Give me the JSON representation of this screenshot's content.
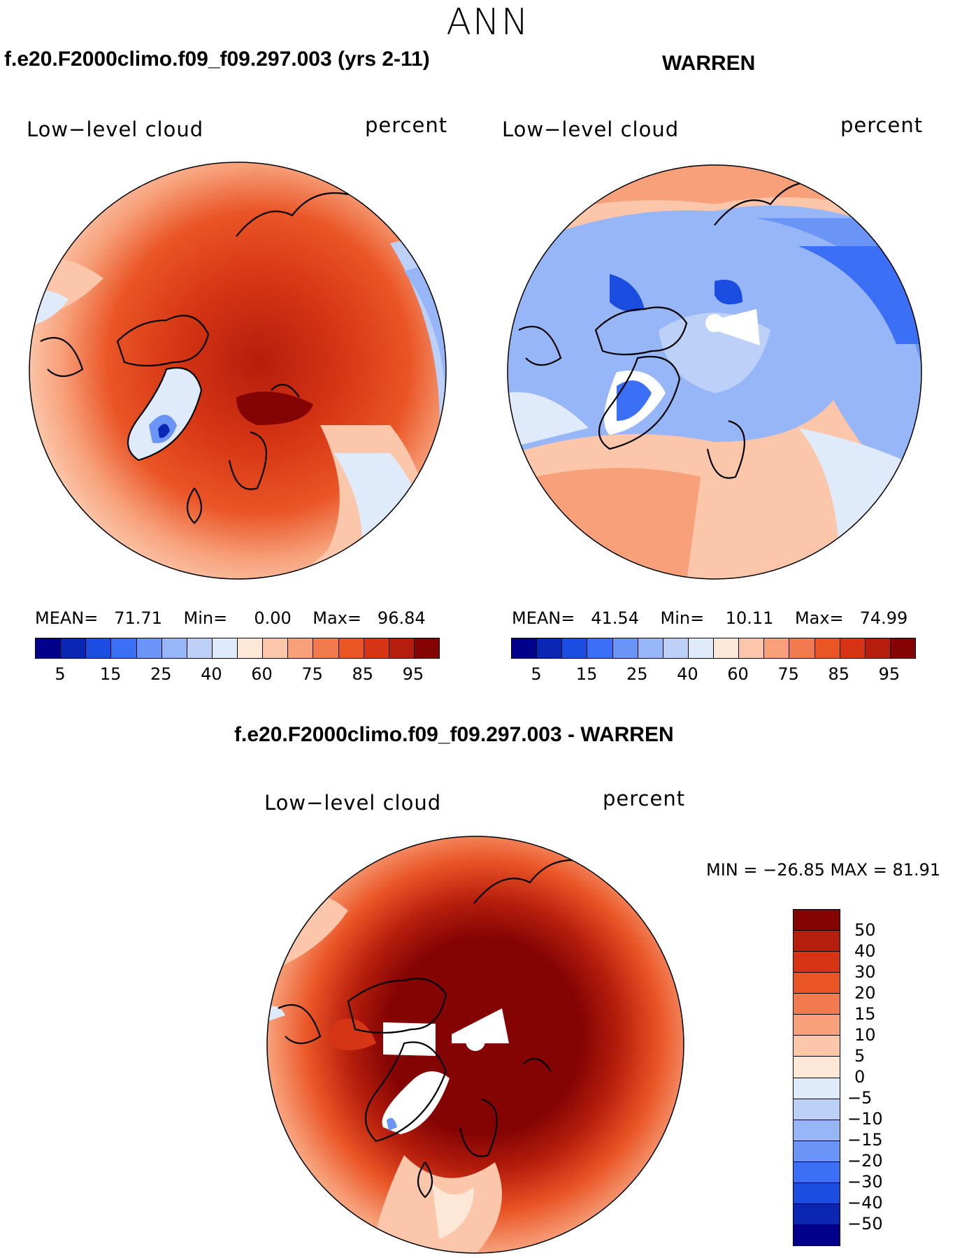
{
  "title": "ANN",
  "panels": {
    "model": {
      "title": "f.e20.F2000climo.f09_f09.297.003 (yrs 2-11)",
      "variable": "Low−level cloud",
      "units": "percent",
      "stats": {
        "mean_label": "MEAN=",
        "mean": "71.71",
        "min_label": "Min=",
        "min": "0.00",
        "max_label": "Max=",
        "max": "96.84"
      }
    },
    "obs": {
      "title": "WARREN",
      "variable": "Low−level cloud",
      "units": "percent",
      "stats": {
        "mean_label": "MEAN=",
        "mean": "41.54",
        "min_label": "Min=",
        "min": "10.11",
        "max_label": "Max=",
        "max": "74.99"
      }
    },
    "diff": {
      "title": "f.e20.F2000climo.f09_f09.297.003 - WARREN",
      "variable": "Low−level cloud",
      "units": "percent",
      "stats_text": "MIN = −26.85 MAX =   81.91"
    }
  },
  "colorbar_abs": {
    "colors": [
      "#00008a",
      "#0a27b4",
      "#1b4de0",
      "#3b6ff5",
      "#6a94f5",
      "#97b6f7",
      "#bdd1f8",
      "#dfeafb",
      "#fde8d8",
      "#fbc6aa",
      "#f7a07a",
      "#f27a4f",
      "#ea5526",
      "#d53514",
      "#b51d0c",
      "#840404"
    ],
    "ticks": [
      "5",
      "15",
      "25",
      "40",
      "60",
      "75",
      "85",
      "95"
    ]
  },
  "colorbar_diff": {
    "colors": [
      "#840404",
      "#b51d0c",
      "#d53514",
      "#ea5526",
      "#f27a4f",
      "#f7a07a",
      "#fbc6aa",
      "#fde8d8",
      "#dfeafb",
      "#bdd1f8",
      "#97b6f7",
      "#6a94f5",
      "#3b6ff5",
      "#1b4de0",
      "#0a27b4",
      "#00008a"
    ],
    "ticks": [
      "50",
      "40",
      "30",
      "20",
      "15",
      "10",
      "5",
      "0",
      "−5",
      "−10",
      "−15",
      "−20",
      "−30",
      "−40",
      "−50"
    ]
  },
  "icons": [
    "polar-map"
  ]
}
